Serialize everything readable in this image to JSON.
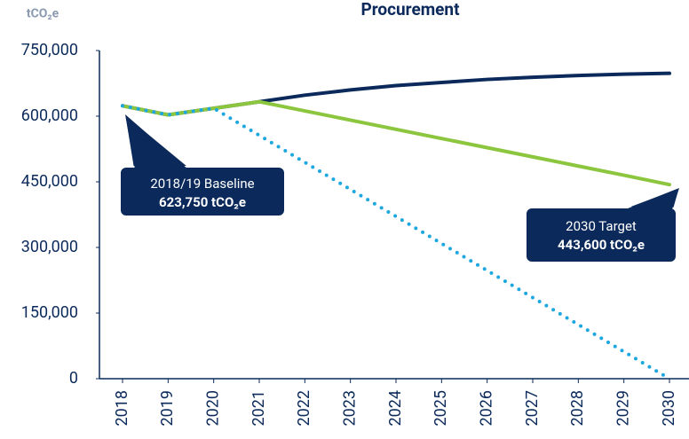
{
  "chart_data": {
    "type": "line",
    "title": "Procurement",
    "y_label": "tCO₂e",
    "categories": [
      "2018",
      "2019",
      "2020",
      "2021",
      "2022",
      "2023",
      "2024",
      "2025",
      "2026",
      "2027",
      "2028",
      "2029",
      "2030"
    ],
    "series": [
      {
        "color": "#0b2a5b",
        "dashed": false,
        "values": [
          623750,
          603000,
          618000,
          633000,
          648000,
          660000,
          670000,
          677000,
          684000,
          689000,
          693000,
          696000,
          698000
        ]
      },
      {
        "color": "#8cc63f",
        "dashed": false,
        "values": [
          623750,
          603000,
          618000,
          633000,
          612000,
          591000,
          570000,
          549000,
          528000,
          507000,
          486000,
          465000,
          443600
        ]
      },
      {
        "color": "#1ca7e0",
        "dashed": true,
        "values": [
          623750,
          603000,
          618000,
          556200,
          494400,
          432600,
          370800,
          309000,
          247200,
          185400,
          123600,
          61800,
          0
        ]
      }
    ],
    "ylim": [
      0,
      750000
    ],
    "yticks": [
      {
        "value": 0,
        "label": "0"
      },
      {
        "value": 150000,
        "label": "150,000"
      },
      {
        "value": 300000,
        "label": "300,000"
      },
      {
        "value": 450000,
        "label": "450,000"
      },
      {
        "value": 600000,
        "label": "600,000"
      },
      {
        "value": 750000,
        "label": "750,000"
      }
    ],
    "annotations": [
      {
        "text": "2018/19 Baseline",
        "value_label": "623,750 tCO₂e"
      },
      {
        "text": "2030 Target",
        "value_label": "443,600 tCO₂e"
      }
    ]
  }
}
